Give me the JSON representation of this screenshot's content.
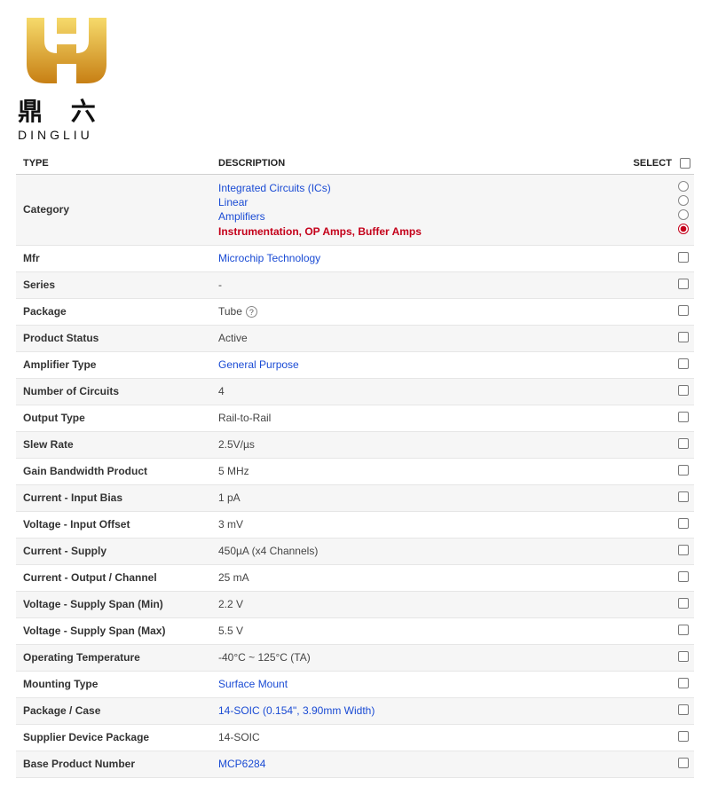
{
  "logo": {
    "chinese": "鼎 六",
    "english": "DINGLIU",
    "crown_color_top": "#f2c94c",
    "crown_color_bottom": "#d48a1a"
  },
  "colors": {
    "link": "#1a4bd4",
    "selected_link": "#c4001a",
    "row_alt": "#f6f6f6",
    "border": "#e6e6e6",
    "text": "#444"
  },
  "headers": {
    "type": "TYPE",
    "description": "DESCRIPTION",
    "select": "SELECT"
  },
  "category_row": {
    "label": "Category",
    "items": [
      {
        "text": "Integrated Circuits (ICs)",
        "selected": false
      },
      {
        "text": "Linear",
        "selected": false
      },
      {
        "text": "Amplifiers",
        "selected": false
      },
      {
        "text": "Instrumentation, OP Amps, Buffer Amps",
        "selected": true
      }
    ]
  },
  "rows": [
    {
      "label": "Mfr",
      "value": "Microchip Technology",
      "isLink": true,
      "alt": false
    },
    {
      "label": "Series",
      "value": "-",
      "isLink": false,
      "alt": true
    },
    {
      "label": "Package",
      "value": "Tube",
      "isLink": false,
      "hasHelp": true,
      "alt": false
    },
    {
      "label": "Product Status",
      "value": "Active",
      "isLink": false,
      "alt": true
    },
    {
      "label": "Amplifier Type",
      "value": "General Purpose",
      "isLink": true,
      "alt": false
    },
    {
      "label": "Number of Circuits",
      "value": "4",
      "isLink": false,
      "alt": true
    },
    {
      "label": "Output Type",
      "value": "Rail-to-Rail",
      "isLink": false,
      "alt": false
    },
    {
      "label": "Slew Rate",
      "value": "2.5V/µs",
      "isLink": false,
      "alt": true
    },
    {
      "label": "Gain Bandwidth Product",
      "value": "5 MHz",
      "isLink": false,
      "alt": false
    },
    {
      "label": "Current - Input Bias",
      "value": "1 pA",
      "isLink": false,
      "alt": true
    },
    {
      "label": "Voltage - Input Offset",
      "value": "3 mV",
      "isLink": false,
      "alt": false
    },
    {
      "label": "Current - Supply",
      "value": "450µA (x4 Channels)",
      "isLink": false,
      "alt": true
    },
    {
      "label": "Current - Output / Channel",
      "value": "25 mA",
      "isLink": false,
      "alt": false
    },
    {
      "label": "Voltage - Supply Span (Min)",
      "value": "2.2 V",
      "isLink": false,
      "alt": true
    },
    {
      "label": "Voltage - Supply Span (Max)",
      "value": "5.5 V",
      "isLink": false,
      "alt": false
    },
    {
      "label": "Operating Temperature",
      "value": "-40°C ~ 125°C (TA)",
      "isLink": false,
      "alt": true
    },
    {
      "label": "Mounting Type",
      "value": "Surface Mount",
      "isLink": true,
      "alt": false
    },
    {
      "label": "Package / Case",
      "value": "14-SOIC (0.154\", 3.90mm Width)",
      "isLink": true,
      "alt": true
    },
    {
      "label": "Supplier Device Package",
      "value": "14-SOIC",
      "isLink": false,
      "alt": false
    },
    {
      "label": "Base Product Number",
      "value": "MCP6284",
      "isLink": true,
      "alt": true
    }
  ]
}
